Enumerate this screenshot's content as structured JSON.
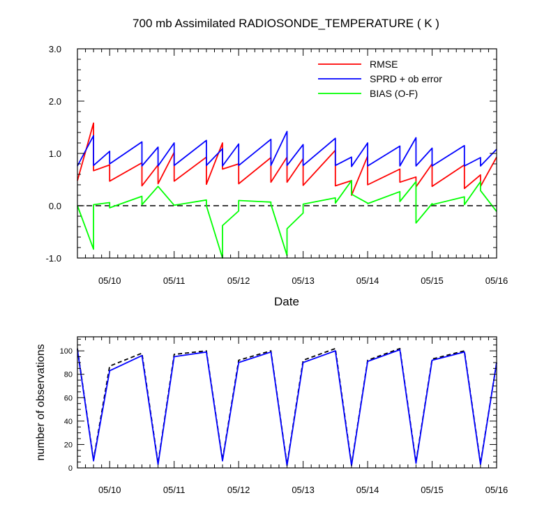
{
  "chart_data": [
    {
      "type": "line",
      "title": "700 mb Assimilated RADIOSONDE_TEMPERATURE ( K )",
      "xlabel": "Date",
      "ylabel": "",
      "ylim": [
        -1.0,
        3.0
      ],
      "yticks": [
        "-1.0",
        "0.0",
        "1.0",
        "2.0",
        "3.0"
      ],
      "xtick_labels": [
        "05/10",
        "05/11",
        "05/12",
        "05/13",
        "05/14",
        "05/15",
        "05/16"
      ],
      "legend": "top-right",
      "zero_line": "dashed",
      "series": [
        {
          "name": "RMSE",
          "color": "#ff0000",
          "x": [
            9.5,
            9.75,
            9.75,
            10.0,
            10.0,
            10.5,
            10.5,
            10.75,
            10.75,
            11.0,
            11.0,
            11.5,
            11.5,
            11.75,
            11.75,
            12.0,
            12.0,
            12.5,
            12.5,
            12.75,
            12.75,
            13.0,
            13.0,
            13.5,
            13.5,
            13.75,
            13.75,
            14.0,
            14.0,
            14.5,
            14.5,
            14.75,
            14.75,
            15.0,
            15.0,
            15.5,
            15.5,
            15.75,
            15.75,
            16.0
          ],
          "values": [
            0.48,
            1.58,
            0.67,
            0.78,
            0.47,
            0.82,
            0.38,
            0.78,
            0.42,
            1.02,
            0.47,
            0.93,
            0.41,
            1.2,
            0.7,
            0.8,
            0.42,
            0.92,
            0.45,
            0.93,
            0.45,
            0.9,
            0.39,
            1.06,
            0.38,
            0.48,
            0.2,
            0.95,
            0.4,
            0.7,
            0.45,
            0.55,
            0.36,
            0.8,
            0.37,
            0.78,
            0.33,
            0.59,
            0.37,
            0.93
          ]
        },
        {
          "name": "SPRD + ob error",
          "color": "#0000ff",
          "x": [
            9.5,
            9.75,
            9.75,
            10.0,
            10.0,
            10.5,
            10.5,
            10.75,
            10.75,
            11.0,
            11.0,
            11.5,
            11.5,
            11.75,
            11.75,
            12.0,
            12.0,
            12.5,
            12.5,
            12.75,
            12.75,
            13.0,
            13.0,
            13.5,
            13.5,
            13.75,
            13.75,
            14.0,
            14.0,
            14.5,
            14.5,
            14.75,
            14.75,
            15.0,
            15.0,
            15.5,
            15.5,
            15.75,
            15.75,
            16.0
          ],
          "values": [
            0.76,
            1.34,
            0.77,
            1.04,
            0.8,
            1.22,
            0.76,
            1.12,
            0.76,
            1.2,
            0.77,
            1.25,
            0.77,
            1.09,
            0.76,
            1.18,
            0.77,
            1.27,
            0.77,
            1.42,
            0.77,
            1.17,
            0.77,
            1.29,
            0.77,
            0.93,
            0.75,
            1.2,
            0.76,
            1.14,
            0.76,
            1.3,
            0.76,
            1.1,
            0.76,
            1.15,
            0.76,
            0.92,
            0.76,
            1.08
          ]
        },
        {
          "name": "BIAS (O-F)",
          "color": "#00ff00",
          "x": [
            9.5,
            9.75,
            9.75,
            10.0,
            10.0,
            10.5,
            10.5,
            10.75,
            11.0,
            11.5,
            11.5,
            11.75,
            11.75,
            12.0,
            12.0,
            12.5,
            12.5,
            12.75,
            12.75,
            13.0,
            13.0,
            13.5,
            13.5,
            13.75,
            13.75,
            14.0,
            14.0,
            14.5,
            14.5,
            14.75,
            14.75,
            15.0,
            15.0,
            15.5,
            15.5,
            15.75,
            15.75,
            16.0
          ],
          "values": [
            0.0,
            -0.83,
            0.02,
            0.06,
            -0.04,
            0.18,
            0.02,
            0.37,
            0.01,
            0.11,
            0.0,
            -1.0,
            -0.38,
            -0.1,
            0.1,
            0.07,
            0.03,
            -0.95,
            -0.44,
            -0.14,
            0.03,
            0.15,
            0.05,
            0.48,
            0.22,
            0.05,
            0.04,
            0.27,
            0.08,
            0.46,
            -0.33,
            0.04,
            0.02,
            0.17,
            0.02,
            0.46,
            0.29,
            -0.11
          ]
        }
      ]
    },
    {
      "type": "line",
      "title": "",
      "xlabel": "",
      "ylabel": "number of observations",
      "ylim": [
        0,
        112
      ],
      "yticks": [
        "0",
        "20",
        "40",
        "60",
        "80",
        "100"
      ],
      "xtick_labels": [
        "05/10",
        "05/11",
        "05/12",
        "05/13",
        "05/14",
        "05/15",
        "05/16"
      ],
      "series": [
        {
          "style": "dashed",
          "color": "#000000",
          "x": [
            9.5,
            9.75,
            10.0,
            10.5,
            10.75,
            11.0,
            11.5,
            11.75,
            12.0,
            12.5,
            12.75,
            13.0,
            13.5,
            13.75,
            14.0,
            14.5,
            14.75,
            15.0,
            15.5,
            15.75,
            16.0
          ],
          "values": [
            102,
            7,
            87,
            98,
            4,
            97,
            100,
            7,
            92,
            100,
            3,
            92,
            102,
            3,
            92,
            102,
            5,
            93,
            100,
            4,
            90
          ]
        },
        {
          "style": "solid",
          "color": "#0000ff",
          "x": [
            9.5,
            9.75,
            10.0,
            10.5,
            10.75,
            11.0,
            11.5,
            11.75,
            12.0,
            12.5,
            12.75,
            13.0,
            13.5,
            13.75,
            14.0,
            14.5,
            14.75,
            15.0,
            15.5,
            15.75,
            16.0
          ],
          "values": [
            101,
            6,
            83,
            96,
            3,
            95,
            99,
            6,
            90,
            99,
            2,
            90,
            100,
            2,
            91,
            101,
            4,
            92,
            99,
            3,
            90
          ]
        }
      ]
    }
  ]
}
